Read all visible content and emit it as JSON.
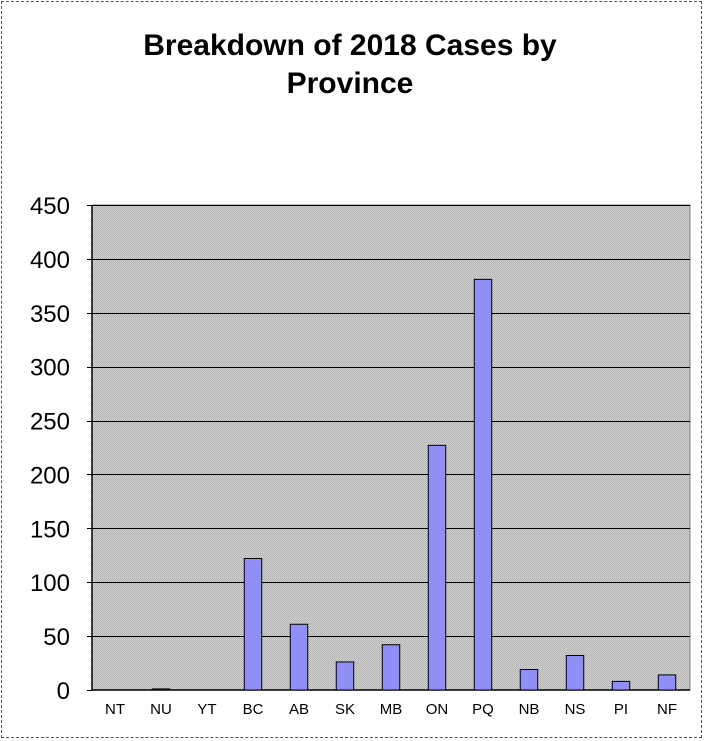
{
  "chart_data": {
    "type": "bar",
    "title_lines": [
      "Breakdown of 2018 Cases by",
      "Province"
    ],
    "title": "Breakdown of 2018 Cases by Province",
    "xlabel": "",
    "ylabel": "",
    "categories": [
      "NT",
      "NU",
      "YT",
      "BC",
      "AB",
      "SK",
      "MB",
      "ON",
      "PQ",
      "NB",
      "NS",
      "PI",
      "NF"
    ],
    "values": [
      0,
      1,
      0,
      122,
      61,
      26,
      42,
      227,
      381,
      19,
      32,
      8,
      14
    ],
    "ylim": [
      0,
      450
    ],
    "yticks": [
      0,
      50,
      100,
      150,
      200,
      250,
      300,
      350,
      400,
      450
    ],
    "grid": true,
    "legend": "none",
    "colors": {
      "bar_fill": "#8f8ff5",
      "bar_stroke": "#000000",
      "plot_background": "#c8c8c8",
      "gridline": "#000000"
    }
  }
}
